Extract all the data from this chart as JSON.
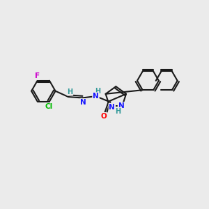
{
  "background_color": "#ebebeb",
  "bond_color": "#1a1a1a",
  "atom_colors": {
    "N": "#1414ff",
    "O": "#ff0000",
    "F": "#cc00cc",
    "Cl": "#00bb00",
    "H": "#339999",
    "C": "#1a1a1a"
  },
  "font_size": 7.5,
  "fig_size": [
    3.0,
    3.0
  ],
  "dpi": 100
}
